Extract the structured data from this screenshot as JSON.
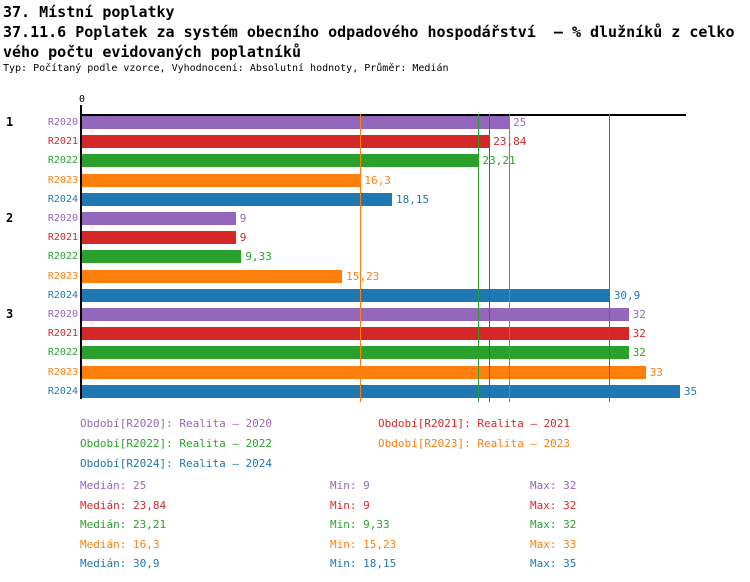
{
  "header": {
    "title": "37. Místní poplatky",
    "subtitle_line1": "37.11.6 Poplatek za systém obecního odpadového hospodářství  – % dlužníků z celko",
    "subtitle_line2": "vého počtu evidovaných poplatníků",
    "meta": "Typ: Počítaný podle vzorce, Vyhodnocení: Absolutní hodnoty, Průměr: Medián"
  },
  "colors": {
    "R2020": "#9467bd",
    "R2021": "#d62728",
    "R2022": "#2ca02c",
    "R2023": "#ff7f0e",
    "R2024": "#1f77b4",
    "axis": "#000000"
  },
  "chart_data": {
    "type": "bar",
    "orientation": "horizontal",
    "title": "37.11.6 Poplatek za systém obecního odpadového hospodářství – % dlužníků z celkového počtu evidovaných poplatníků",
    "x_axis": {
      "min": 0,
      "max": 35.36,
      "tick_labels": [
        "0"
      ],
      "grid": false
    },
    "categories": [
      "1",
      "2",
      "3"
    ],
    "series": [
      {
        "name": "R2020",
        "color": "#9467bd",
        "values": [
          25,
          9,
          32
        ],
        "value_labels": [
          "25",
          "9",
          "32"
        ]
      },
      {
        "name": "R2021",
        "color": "#d62728",
        "values": [
          23.84,
          9,
          32
        ],
        "value_labels": [
          "23,84",
          "9",
          "32"
        ]
      },
      {
        "name": "R2022",
        "color": "#2ca02c",
        "values": [
          23.21,
          9.33,
          32
        ],
        "value_labels": [
          "23,21",
          "9,33",
          "32"
        ]
      },
      {
        "name": "R2023",
        "color": "#ff7f0e",
        "values": [
          16.3,
          15.23,
          33
        ],
        "value_labels": [
          "16,3",
          "15,23",
          "33"
        ]
      },
      {
        "name": "R2024",
        "color": "#1f77b4",
        "values": [
          18.15,
          30.9,
          35
        ],
        "value_labels": [
          "18,15",
          "30,9",
          "35"
        ]
      }
    ],
    "median_lines": [
      {
        "series": "R2020",
        "value": 25,
        "color": "#9467bd"
      },
      {
        "series": "R2021",
        "value": 23.84,
        "color": "#d62728"
      },
      {
        "series": "R2022",
        "value": 23.21,
        "color": "#2ca02c"
      },
      {
        "series": "R2023",
        "value": 16.3,
        "color": "#ff7f0e"
      },
      {
        "series": "R2024",
        "value": 30.9,
        "color": "#1f77b4"
      }
    ]
  },
  "legend": {
    "entries": [
      {
        "label": "Období[R2020]: Realita – 2020",
        "color": "#9467bd",
        "column": 0
      },
      {
        "label": "Období[R2021]: Realita – 2021",
        "color": "#d62728",
        "column": 1
      },
      {
        "label": "Období[R2022]: Realita – 2022",
        "color": "#2ca02c",
        "column": 0
      },
      {
        "label": "Období[R2023]: Realita – 2023",
        "color": "#ff7f0e",
        "column": 1
      },
      {
        "label": "Období[R2024]: Realita – 2024",
        "color": "#1f77b4",
        "column": 0
      }
    ]
  },
  "stats": {
    "median_prefix": "Medián",
    "min_prefix": "Min",
    "max_prefix": "Max",
    "rows": [
      {
        "series": "R2020",
        "color": "#9467bd",
        "median": "25",
        "min": "9",
        "max": "32"
      },
      {
        "series": "R2021",
        "color": "#d62728",
        "median": "23,84",
        "min": "9",
        "max": "32"
      },
      {
        "series": "R2022",
        "color": "#2ca02c",
        "median": "23,21",
        "min": "9,33",
        "max": "32"
      },
      {
        "series": "R2023",
        "color": "#ff7f0e",
        "median": "16,3",
        "min": "15,23",
        "max": "33"
      },
      {
        "series": "R2024",
        "color": "#1f77b4",
        "median": "30,9",
        "min": "18,15",
        "max": "35"
      }
    ]
  }
}
